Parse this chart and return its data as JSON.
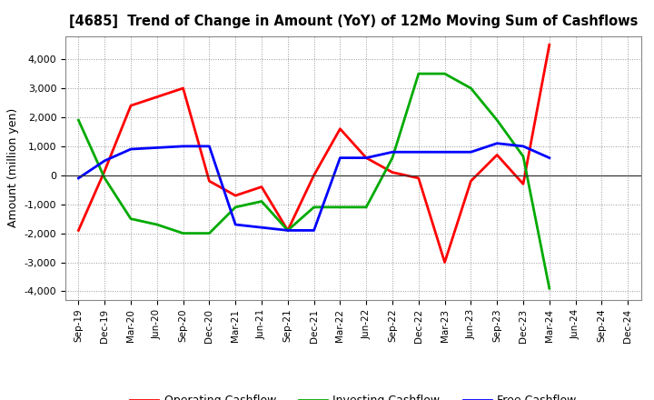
{
  "title": "[4685]  Trend of Change in Amount (YoY) of 12Mo Moving Sum of Cashflows",
  "ylabel": "Amount (million yen)",
  "x_labels": [
    "Sep-19",
    "Dec-19",
    "Mar-20",
    "Jun-20",
    "Sep-20",
    "Dec-20",
    "Mar-21",
    "Jun-21",
    "Sep-21",
    "Dec-21",
    "Mar-22",
    "Jun-22",
    "Sep-22",
    "Dec-22",
    "Mar-23",
    "Jun-23",
    "Sep-23",
    "Dec-23",
    "Mar-24",
    "Jun-24",
    "Sep-24",
    "Dec-24"
  ],
  "operating": [
    -1900,
    150,
    2400,
    2700,
    3000,
    -200,
    -700,
    -400,
    -1900,
    0,
    1600,
    600,
    100,
    -100,
    -3000,
    -200,
    700,
    -300,
    4500,
    null,
    null,
    null
  ],
  "investing": [
    1900,
    -100,
    -1500,
    -1700,
    -2000,
    -2000,
    -1100,
    -900,
    -1900,
    -1100,
    -1100,
    -1100,
    600,
    3500,
    3500,
    3000,
    1900,
    650,
    -3900,
    null,
    null,
    null
  ],
  "free": [
    -100,
    500,
    900,
    950,
    1000,
    1000,
    -1700,
    -1800,
    -1900,
    -1900,
    600,
    600,
    800,
    800,
    800,
    800,
    1100,
    1000,
    600,
    null,
    null,
    null
  ],
  "operating_color": "#ff0000",
  "investing_color": "#00aa00",
  "free_color": "#0000ff",
  "yticks": [
    -4000,
    -3000,
    -2000,
    -1000,
    0,
    1000,
    2000,
    3000,
    4000
  ],
  "bg_color": "#ffffff"
}
